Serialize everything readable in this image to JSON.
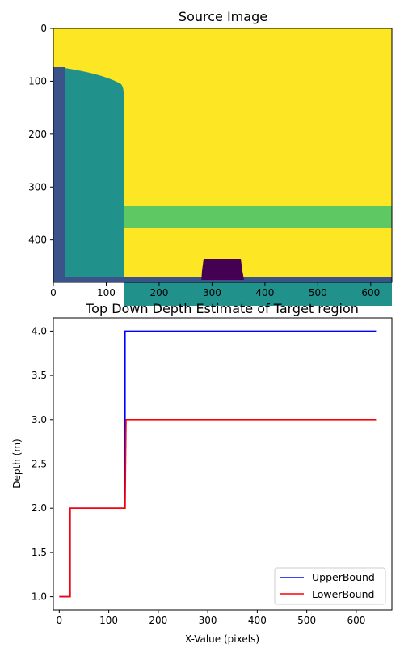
{
  "chart_data": [
    {
      "type": "heatmap",
      "title": "Source Image",
      "xlabel": "",
      "ylabel": "",
      "xlim": [
        0,
        640
      ],
      "ylim": [
        480,
        0
      ],
      "xticks": [
        0,
        100,
        200,
        300,
        400,
        500,
        600
      ],
      "yticks": [
        0,
        100,
        200,
        300,
        400
      ],
      "colors": {
        "background": "#fde725",
        "wall": "#21918c",
        "edge_strip": "#3b528b",
        "target_band": "#5ec962",
        "object": "#440154"
      }
    },
    {
      "type": "line",
      "title": "Top Down Depth Estimate of Target region",
      "xlabel": "X-Value (pixels)",
      "ylabel": "Depth (m)",
      "xlim": [
        -12,
        672
      ],
      "ylim": [
        0.85,
        4.15
      ],
      "xticks": [
        0,
        100,
        200,
        300,
        400,
        500,
        600
      ],
      "yticks": [
        1.0,
        1.5,
        2.0,
        2.5,
        3.0,
        3.5,
        4.0
      ],
      "legend_position": "lower-right",
      "series": [
        {
          "name": "UpperBound",
          "color": "#0000ff",
          "x": [
            0,
            20,
            20,
            22,
            22,
            133,
            133,
            640
          ],
          "y": [
            1.0,
            1.0,
            1.0,
            1.0,
            2.0,
            2.0,
            4.0,
            4.0
          ]
        },
        {
          "name": "LowerBound",
          "color": "#ff0000",
          "x": [
            0,
            20,
            20,
            22,
            22,
            133,
            135,
            640
          ],
          "y": [
            1.0,
            1.0,
            1.0,
            1.0,
            2.0,
            2.0,
            3.0,
            3.0
          ]
        }
      ]
    }
  ]
}
